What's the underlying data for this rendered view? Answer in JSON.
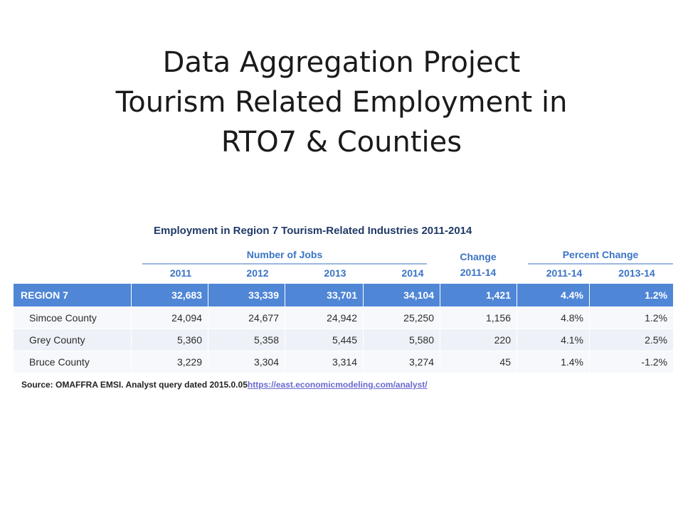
{
  "slide": {
    "title_lines": [
      "Data Aggregation Project",
      "Tourism Related Employment in",
      "RTO7 & Counties"
    ]
  },
  "table": {
    "title": "Employment in Region 7 Tourism-Related Industries 2011-2014",
    "group_jobs": "Number of Jobs",
    "group_change": "Change",
    "group_change_sub": "2011-14",
    "group_percent": "Percent Change",
    "columns": [
      "2011",
      "2012",
      "2013",
      "2014",
      "2011-14",
      "2013-14"
    ],
    "rows": [
      {
        "name": "REGION 7",
        "cells": [
          "32,683",
          "33,339",
          "33,701",
          "34,104",
          "1,421",
          "4.4%",
          "1.2%"
        ]
      },
      {
        "name": "Simcoe County",
        "cells": [
          "24,094",
          "24,677",
          "24,942",
          "25,250",
          "1,156",
          "4.8%",
          "1.2%"
        ]
      },
      {
        "name": "Grey County",
        "cells": [
          "5,360",
          "5,358",
          "5,445",
          "5,580",
          "220",
          "4.1%",
          "2.5%"
        ]
      },
      {
        "name": "Bruce County",
        "cells": [
          "3,229",
          "3,304",
          "3,314",
          "3,274",
          "45",
          "1.4%",
          "-1.2%"
        ]
      }
    ],
    "source_text": "Source: OMAFFRA EMSI.  Analyst query dated 2015.0.05",
    "source_link": "https://east.economicmodeling.com/analyst/"
  }
}
